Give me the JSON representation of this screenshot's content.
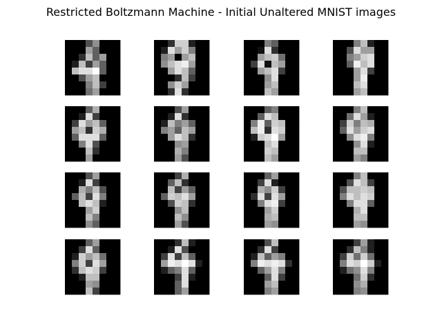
{
  "chart_data": {
    "type": "heatmap",
    "title": "Restricted Boltzmann Machine - Initial Unaltered MNIST images",
    "layout": {
      "rows": 4,
      "cols": 4
    },
    "colormap": "gray",
    "value_range": [
      0,
      16
    ],
    "image_size": [
      8,
      8
    ],
    "axes_visible": false,
    "images": [
      [
        [
          0,
          0,
          0,
          5,
          9,
          0,
          0,
          0
        ],
        [
          0,
          0,
          0,
          10,
          6,
          0,
          0,
          0
        ],
        [
          0,
          0,
          3,
          12,
          6,
          10,
          0,
          0
        ],
        [
          0,
          2,
          12,
          4,
          10,
          6,
          0,
          0
        ],
        [
          0,
          12,
          14,
          14,
          16,
          6,
          0,
          0
        ],
        [
          0,
          0,
          5,
          10,
          12,
          0,
          0,
          0
        ],
        [
          0,
          0,
          0,
          8,
          12,
          4,
          0,
          0
        ],
        [
          0,
          0,
          0,
          7,
          10,
          0,
          0,
          0
        ]
      ],
      [
        [
          0,
          0,
          3,
          13,
          13,
          2,
          0,
          0
        ],
        [
          0,
          2,
          14,
          10,
          13,
          8,
          0,
          0
        ],
        [
          0,
          8,
          10,
          0,
          10,
          12,
          0,
          0
        ],
        [
          0,
          9,
          12,
          14,
          15,
          10,
          0,
          0
        ],
        [
          0,
          0,
          10,
          14,
          12,
          6,
          0,
          0
        ],
        [
          0,
          0,
          0,
          3,
          12,
          4,
          0,
          0
        ],
        [
          0,
          0,
          9,
          13,
          10,
          0,
          0,
          0
        ],
        [
          0,
          0,
          3,
          14,
          3,
          0,
          0,
          0
        ]
      ],
      [
        [
          0,
          0,
          0,
          8,
          6,
          0,
          0,
          0
        ],
        [
          0,
          0,
          1,
          14,
          3,
          0,
          0,
          0
        ],
        [
          0,
          0,
          10,
          12,
          13,
          7,
          0,
          0
        ],
        [
          0,
          4,
          14,
          1,
          12,
          10,
          0,
          0
        ],
        [
          0,
          0,
          10,
          12,
          14,
          4,
          0,
          0
        ],
        [
          0,
          0,
          0,
          9,
          14,
          0,
          0,
          0
        ],
        [
          0,
          0,
          0,
          10,
          12,
          0,
          0,
          0
        ],
        [
          0,
          0,
          0,
          12,
          10,
          0,
          0,
          0
        ]
      ],
      [
        [
          0,
          0,
          0,
          8,
          12,
          2,
          0,
          0
        ],
        [
          0,
          0,
          5,
          14,
          10,
          10,
          0,
          0
        ],
        [
          0,
          0,
          8,
          10,
          13,
          14,
          0,
          0
        ],
        [
          0,
          0,
          6,
          15,
          12,
          14,
          0,
          0
        ],
        [
          0,
          0,
          0,
          10,
          14,
          4,
          0,
          0
        ],
        [
          0,
          0,
          0,
          10,
          15,
          0,
          0,
          0
        ],
        [
          0,
          0,
          0,
          12,
          14,
          0,
          0,
          0
        ],
        [
          0,
          0,
          0,
          10,
          12,
          0,
          0,
          0
        ]
      ],
      [
        [
          0,
          0,
          0,
          6,
          11,
          0,
          0,
          0
        ],
        [
          0,
          0,
          2,
          14,
          4,
          0,
          0,
          0
        ],
        [
          0,
          4,
          14,
          10,
          12,
          6,
          0,
          0
        ],
        [
          0,
          10,
          12,
          3,
          13,
          11,
          0,
          0
        ],
        [
          0,
          6,
          14,
          14,
          14,
          6,
          0,
          0
        ],
        [
          0,
          0,
          8,
          14,
          5,
          0,
          0,
          0
        ],
        [
          0,
          0,
          0,
          12,
          3,
          0,
          0,
          0
        ],
        [
          0,
          0,
          0,
          10,
          0,
          0,
          0,
          0
        ]
      ],
      [
        [
          0,
          0,
          0,
          5,
          10,
          0,
          0,
          0
        ],
        [
          0,
          0,
          2,
          14,
          3,
          0,
          0,
          0
        ],
        [
          0,
          2,
          12,
          8,
          10,
          6,
          0,
          0
        ],
        [
          0,
          8,
          10,
          6,
          12,
          10,
          0,
          0
        ],
        [
          0,
          0,
          10,
          14,
          12,
          3,
          0,
          0
        ],
        [
          0,
          0,
          0,
          9,
          10,
          0,
          0,
          0
        ],
        [
          0,
          0,
          0,
          11,
          8,
          0,
          0,
          0
        ],
        [
          0,
          0,
          0,
          10,
          5,
          0,
          0,
          0
        ]
      ],
      [
        [
          0,
          0,
          0,
          6,
          8,
          0,
          0,
          0
        ],
        [
          0,
          0,
          6,
          14,
          12,
          0,
          0,
          0
        ],
        [
          0,
          8,
          15,
          6,
          13,
          12,
          0,
          0
        ],
        [
          0,
          12,
          15,
          3,
          14,
          13,
          0,
          0
        ],
        [
          0,
          2,
          13,
          14,
          16,
          10,
          0,
          0
        ],
        [
          0,
          0,
          0,
          12,
          14,
          0,
          0,
          0
        ],
        [
          0,
          0,
          0,
          13,
          12,
          0,
          0,
          0
        ],
        [
          0,
          0,
          0,
          12,
          10,
          0,
          0,
          0
        ]
      ],
      [
        [
          0,
          0,
          0,
          8,
          12,
          0,
          0,
          0
        ],
        [
          0,
          0,
          7,
          14,
          10,
          2,
          0,
          0
        ],
        [
          0,
          4,
          13,
          8,
          12,
          11,
          0,
          0
        ],
        [
          0,
          6,
          14,
          10,
          13,
          14,
          0,
          0
        ],
        [
          0,
          0,
          9,
          14,
          15,
          8,
          0,
          0
        ],
        [
          0,
          0,
          0,
          9,
          14,
          2,
          0,
          0
        ],
        [
          0,
          0,
          0,
          12,
          12,
          0,
          0,
          0
        ],
        [
          0,
          0,
          0,
          10,
          8,
          0,
          0,
          0
        ]
      ],
      [
        [
          0,
          0,
          0,
          5,
          10,
          0,
          0,
          0
        ],
        [
          0,
          0,
          2,
          14,
          4,
          0,
          0,
          0
        ],
        [
          0,
          0,
          11,
          8,
          12,
          5,
          0,
          0
        ],
        [
          0,
          6,
          12,
          4,
          14,
          8,
          0,
          0
        ],
        [
          0,
          0,
          12,
          14,
          12,
          2,
          0,
          0
        ],
        [
          0,
          0,
          0,
          10,
          13,
          0,
          0,
          0
        ],
        [
          0,
          0,
          0,
          12,
          8,
          0,
          0,
          0
        ],
        [
          0,
          0,
          0,
          9,
          6,
          0,
          0,
          0
        ]
      ],
      [
        [
          0,
          0,
          0,
          4,
          11,
          0,
          0,
          0
        ],
        [
          0,
          0,
          6,
          12,
          3,
          0,
          0,
          0
        ],
        [
          0,
          0,
          12,
          4,
          10,
          6,
          0,
          0
        ],
        [
          0,
          6,
          13,
          12,
          14,
          10,
          0,
          0
        ],
        [
          0,
          0,
          5,
          13,
          12,
          3,
          0,
          0
        ],
        [
          0,
          0,
          0,
          9,
          12,
          0,
          0,
          0
        ],
        [
          0,
          0,
          0,
          12,
          9,
          0,
          0,
          0
        ],
        [
          0,
          0,
          0,
          10,
          5,
          0,
          0,
          0
        ]
      ],
      [
        [
          0,
          0,
          0,
          6,
          10,
          0,
          0,
          0
        ],
        [
          0,
          0,
          4,
          14,
          2,
          0,
          0,
          0
        ],
        [
          0,
          0,
          11,
          9,
          13,
          4,
          0,
          0
        ],
        [
          0,
          3,
          14,
          4,
          14,
          10,
          0,
          0
        ],
        [
          0,
          0,
          8,
          14,
          15,
          4,
          0,
          0
        ],
        [
          0,
          0,
          0,
          10,
          13,
          0,
          0,
          0
        ],
        [
          0,
          0,
          0,
          11,
          12,
          0,
          0,
          0
        ],
        [
          0,
          0,
          0,
          10,
          9,
          0,
          0,
          0
        ]
      ],
      [
        [
          0,
          0,
          0,
          8,
          12,
          0,
          0,
          0
        ],
        [
          0,
          0,
          5,
          14,
          12,
          4,
          0,
          0
        ],
        [
          0,
          5,
          12,
          12,
          13,
          12,
          0,
          0
        ],
        [
          0,
          8,
          14,
          12,
          14,
          13,
          0,
          0
        ],
        [
          0,
          0,
          8,
          14,
          14,
          6,
          0,
          0
        ],
        [
          0,
          0,
          0,
          11,
          14,
          0,
          0,
          0
        ],
        [
          0,
          0,
          0,
          12,
          12,
          0,
          0,
          0
        ],
        [
          0,
          0,
          0,
          10,
          9,
          0,
          0,
          0
        ]
      ],
      [
        [
          0,
          0,
          0,
          6,
          10,
          0,
          0,
          0
        ],
        [
          0,
          0,
          4,
          14,
          6,
          0,
          0,
          0
        ],
        [
          0,
          2,
          13,
          10,
          12,
          7,
          0,
          0
        ],
        [
          0,
          8,
          13,
          4,
          14,
          10,
          0,
          0
        ],
        [
          0,
          3,
          12,
          14,
          13,
          4,
          0,
          0
        ],
        [
          0,
          0,
          2,
          12,
          12,
          0,
          0,
          0
        ],
        [
          0,
          0,
          0,
          10,
          9,
          0,
          0,
          0
        ],
        [
          0,
          0,
          0,
          12,
          4,
          0,
          0,
          0
        ]
      ],
      [
        [
          0,
          0,
          0,
          3,
          12,
          2,
          0,
          0
        ],
        [
          0,
          0,
          2,
          14,
          5,
          0,
          0,
          0
        ],
        [
          0,
          4,
          14,
          4,
          12,
          6,
          0,
          0
        ],
        [
          0,
          10,
          15,
          14,
          16,
          14,
          2,
          0
        ],
        [
          0,
          2,
          6,
          8,
          14,
          6,
          0,
          0
        ],
        [
          0,
          0,
          0,
          4,
          14,
          2,
          0,
          0
        ],
        [
          0,
          0,
          0,
          6,
          14,
          0,
          0,
          0
        ],
        [
          0,
          0,
          0,
          6,
          10,
          0,
          0,
          0
        ]
      ],
      [
        [
          0,
          0,
          0,
          5,
          12,
          0,
          0,
          0
        ],
        [
          0,
          0,
          3,
          14,
          4,
          0,
          0,
          0
        ],
        [
          0,
          2,
          12,
          6,
          10,
          8,
          0,
          0
        ],
        [
          0,
          8,
          15,
          14,
          15,
          14,
          3,
          0
        ],
        [
          0,
          0,
          6,
          10,
          14,
          8,
          0,
          0
        ],
        [
          0,
          0,
          0,
          6,
          14,
          4,
          0,
          0
        ],
        [
          0,
          0,
          0,
          10,
          12,
          0,
          0,
          0
        ],
        [
          0,
          0,
          0,
          8,
          10,
          0,
          0,
          0
        ]
      ],
      [
        [
          0,
          0,
          0,
          4,
          10,
          2,
          0,
          0
        ],
        [
          0,
          0,
          3,
          12,
          8,
          2,
          0,
          0
        ],
        [
          0,
          4,
          13,
          7,
          13,
          7,
          0,
          0
        ],
        [
          0,
          8,
          14,
          13,
          16,
          13,
          2,
          0
        ],
        [
          0,
          2,
          7,
          9,
          14,
          8,
          0,
          0
        ],
        [
          0,
          0,
          0,
          7,
          13,
          3,
          0,
          0
        ],
        [
          0,
          0,
          0,
          9,
          11,
          0,
          0,
          0
        ],
        [
          0,
          0,
          0,
          8,
          9,
          0,
          0,
          0
        ]
      ]
    ]
  }
}
